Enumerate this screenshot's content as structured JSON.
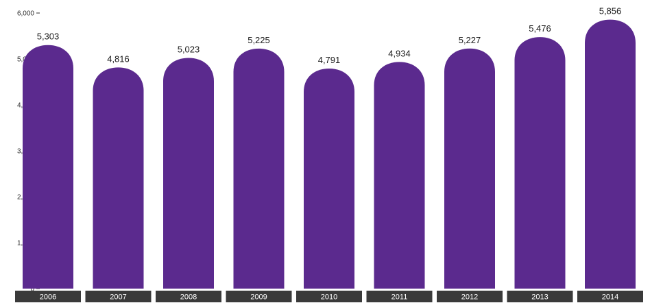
{
  "chart_data": {
    "type": "bar",
    "categories": [
      "2006",
      "2007",
      "2008",
      "2009",
      "2010",
      "2011",
      "2012",
      "2013",
      "2014"
    ],
    "values": [
      5303,
      4816,
      5023,
      5225,
      4791,
      4934,
      5227,
      5476,
      5856
    ],
    "value_labels": [
      "5,303",
      "4,816",
      "5,023",
      "5,225",
      "4,791",
      "4,934",
      "5,227",
      "5,476",
      "5,856"
    ],
    "title": "",
    "xlabel": "",
    "ylabel": "",
    "ylim": [
      0,
      6000
    ],
    "yticks": [
      0,
      1000,
      2000,
      3000,
      4000,
      5000,
      6000
    ],
    "ytick_labels": [
      "0",
      "1,000",
      "2,000",
      "3,000",
      "4,000",
      "5,000",
      "6,000"
    ],
    "grid": false,
    "legend": "none",
    "bar_shape": "rounded-top",
    "colors": {
      "bar": "#5b2a8e",
      "category_label_bg": "#3a3a3a",
      "category_label_text": "#ffffff",
      "value_label_text": "#1a1a1a",
      "axis_text": "#2b2b2b"
    }
  }
}
